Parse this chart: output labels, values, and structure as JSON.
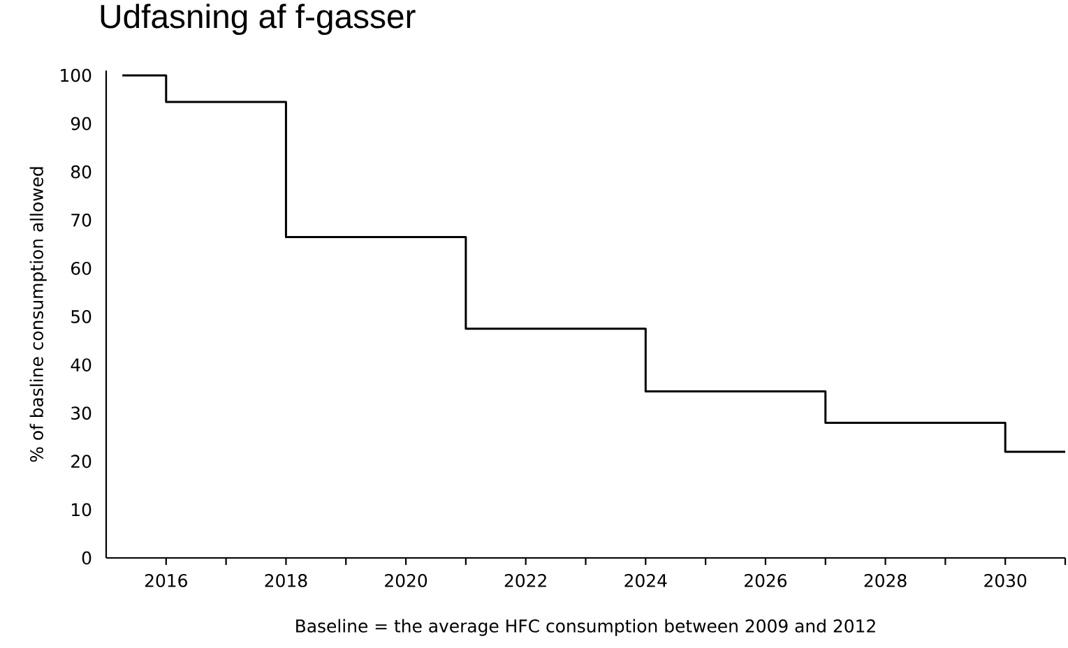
{
  "chart_data": {
    "type": "step",
    "title": "Udfasning af f-gasser",
    "xlabel": "Baseline = the average HFC consumption between 2009 and 2012",
    "ylabel": "% of basline consumption allowed",
    "x": [
      2015.27,
      2016,
      2018,
      2021,
      2024,
      2027,
      2030,
      2031
    ],
    "values": [
      100,
      94.5,
      66.5,
      47.5,
      34.5,
      28,
      22,
      22
    ],
    "color": "#000000",
    "marker": "none",
    "line_style": "solid",
    "xlim": [
      2015,
      2031
    ],
    "xticks": [
      2016,
      {
        "value": 2017,
        "label": null
      },
      2018,
      {
        "value": 2019,
        "label": null
      },
      2020,
      {
        "value": 2021,
        "label": null
      },
      2022,
      {
        "value": 2023,
        "label": null
      },
      2024,
      {
        "value": 2025,
        "label": null
      },
      2026,
      {
        "value": 2027,
        "label": null
      },
      2028,
      {
        "value": 2029,
        "label": null
      },
      2030,
      {
        "value": 2031,
        "label": null
      }
    ],
    "ylim": [
      0,
      101
    ],
    "yticks": [
      0,
      10,
      20,
      30,
      40,
      50,
      60,
      70,
      80,
      90,
      100
    ]
  }
}
